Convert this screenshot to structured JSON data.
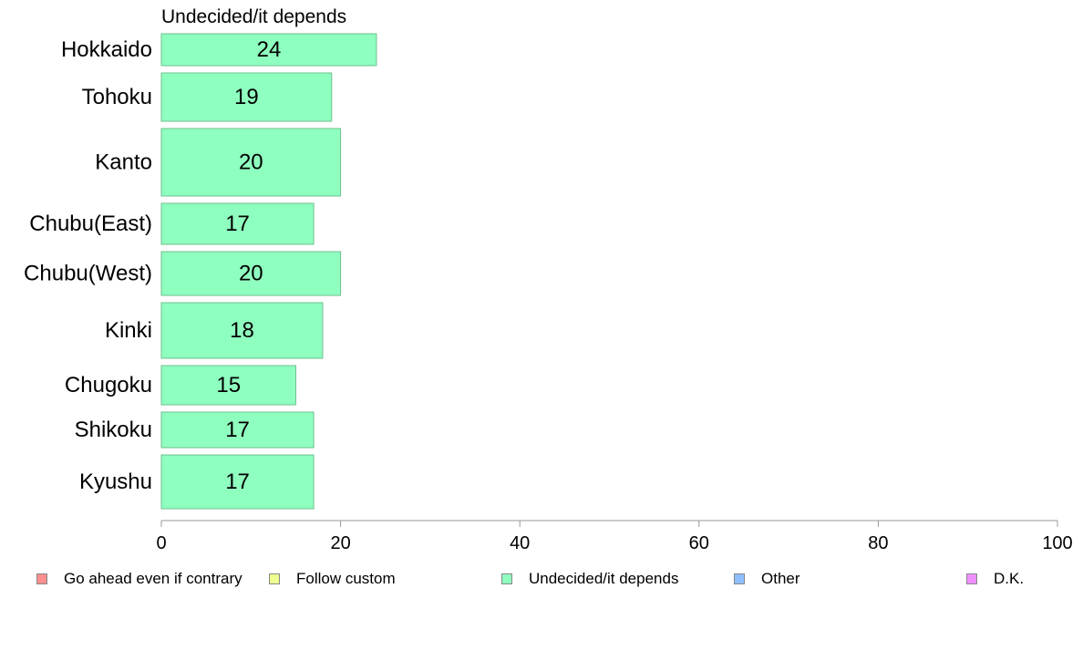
{
  "chart_data": {
    "type": "bar",
    "orientation": "horizontal",
    "title": "Undecided/it depends",
    "categories": [
      "Hokkaido",
      "Tohoku",
      "Kanto",
      "Chubu(East)",
      "Chubu(West)",
      "Kinki",
      "Chugoku",
      "Shikoku",
      "Kyushu"
    ],
    "series": [
      {
        "name": "Undecided/it depends",
        "color": "#8fffbf",
        "values": [
          24,
          19,
          20,
          17,
          20,
          18,
          15,
          17,
          17
        ]
      }
    ],
    "xlim": [
      0,
      100
    ],
    "xticks": [
      0,
      20,
      40,
      60,
      80,
      100
    ],
    "grid": false,
    "legend_position": "bottom"
  },
  "legend": [
    {
      "label": "Go ahead even if contrary",
      "color": "#ff8f8f"
    },
    {
      "label": "Follow custom",
      "color": "#efff8f"
    },
    {
      "label": "Undecided/it depends",
      "color": "#8fffbf"
    },
    {
      "label": "Other",
      "color": "#8fbfff"
    },
    {
      "label": "D.K.",
      "color": "#ef8fff"
    }
  ]
}
